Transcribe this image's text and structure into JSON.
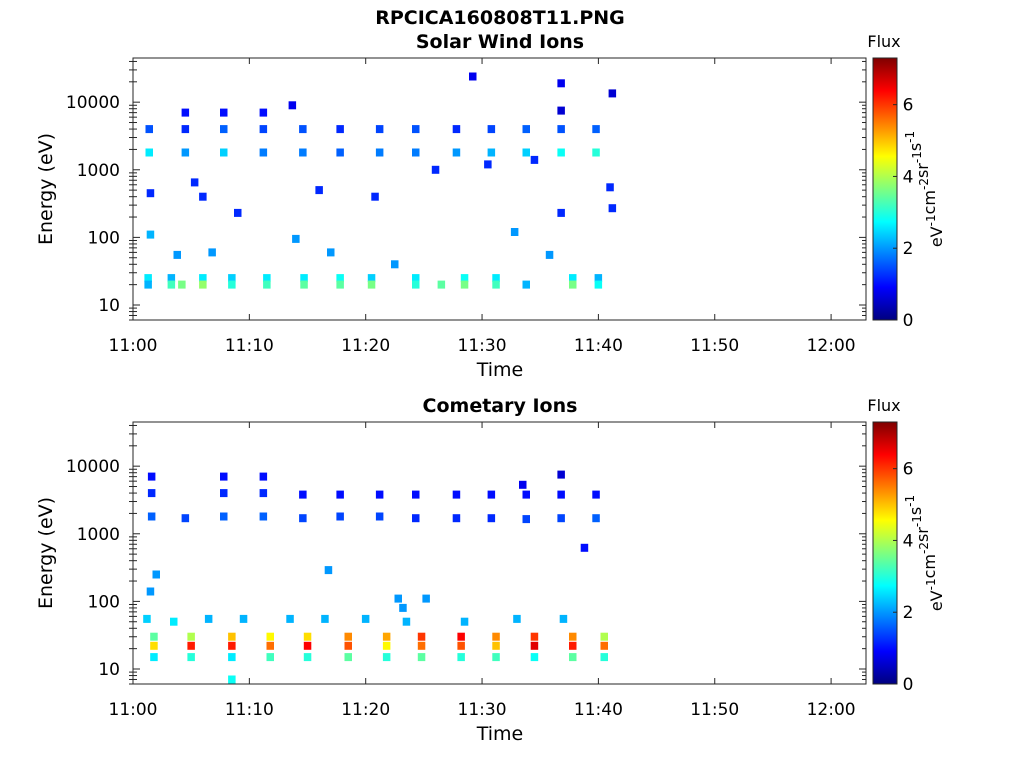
{
  "figure": {
    "title": "RPCICA160808T11.PNG"
  },
  "colormap": {
    "name": "jet",
    "stops": [
      "#00007f",
      "#0000ff",
      "#007fff",
      "#00ffff",
      "#7fff7f",
      "#ffff00",
      "#ff7f00",
      "#ff0000",
      "#7f0000"
    ]
  },
  "colorbar": {
    "title": "Flux",
    "unit_parts": [
      "eV",
      "-1",
      "cm",
      "-2",
      "sr",
      "-1",
      "s",
      "-1"
    ],
    "range": [
      0,
      7.3
    ],
    "ticks": [
      "0",
      "2",
      "4",
      "6"
    ],
    "tick_values": [
      0,
      2,
      4,
      6
    ]
  },
  "chart_data": [
    {
      "type": "heatmap",
      "title": "Solar Wind Ions",
      "xlabel": "Time",
      "ylabel": "Energy (eV)",
      "x_axis": {
        "range_minutes": [
          0,
          63
        ],
        "ticks": [
          "11:00",
          "11:10",
          "11:20",
          "11:30",
          "11:40",
          "11:50",
          "12:00"
        ],
        "tick_minutes": [
          0,
          10,
          20,
          30,
          40,
          50,
          60
        ]
      },
      "y_axis": {
        "scale": "log",
        "range": [
          6,
          45000
        ],
        "ticks": [
          "10",
          "100",
          "1000",
          "10000"
        ],
        "tick_values": [
          10,
          100,
          1000,
          10000
        ]
      },
      "grid": false,
      "blocks": [
        {
          "t": 1.3,
          "e": 25,
          "f": 2.6
        },
        {
          "t": 1.3,
          "e": 20,
          "f": 2.2
        },
        {
          "t": 3.3,
          "e": 25,
          "f": 2.2
        },
        {
          "t": 3.3,
          "e": 20,
          "f": 3.2
        },
        {
          "t": 4.2,
          "e": 20,
          "f": 3.6
        },
        {
          "t": 6.0,
          "e": 25,
          "f": 2.6
        },
        {
          "t": 6.0,
          "e": 20,
          "f": 3.8
        },
        {
          "t": 8.5,
          "e": 25,
          "f": 2.4
        },
        {
          "t": 8.5,
          "e": 20,
          "f": 3.0
        },
        {
          "t": 11.5,
          "e": 25,
          "f": 2.6
        },
        {
          "t": 11.5,
          "e": 20,
          "f": 3.2
        },
        {
          "t": 14.7,
          "e": 25,
          "f": 2.6
        },
        {
          "t": 14.7,
          "e": 20,
          "f": 3.4
        },
        {
          "t": 17.8,
          "e": 25,
          "f": 2.8
        },
        {
          "t": 17.8,
          "e": 20,
          "f": 3.4
        },
        {
          "t": 20.5,
          "e": 25,
          "f": 2.4
        },
        {
          "t": 20.5,
          "e": 20,
          "f": 3.6
        },
        {
          "t": 24.3,
          "e": 25,
          "f": 2.6
        },
        {
          "t": 24.3,
          "e": 20,
          "f": 3.0
        },
        {
          "t": 26.5,
          "e": 20,
          "f": 3.4
        },
        {
          "t": 28.5,
          "e": 25,
          "f": 2.8
        },
        {
          "t": 28.5,
          "e": 20,
          "f": 3.6
        },
        {
          "t": 31.2,
          "e": 25,
          "f": 2.6
        },
        {
          "t": 31.2,
          "e": 20,
          "f": 3.2
        },
        {
          "t": 33.8,
          "e": 20,
          "f": 2.2
        },
        {
          "t": 37.8,
          "e": 25,
          "f": 2.6
        },
        {
          "t": 37.8,
          "e": 20,
          "f": 3.6
        },
        {
          "t": 40.0,
          "e": 25,
          "f": 2.2
        },
        {
          "t": 40.0,
          "e": 20,
          "f": 2.8
        },
        {
          "t": 1.4,
          "e": 4000,
          "f": 1.5
        },
        {
          "t": 1.4,
          "e": 1800,
          "f": 2.6
        },
        {
          "t": 4.5,
          "e": 4000,
          "f": 1.2
        },
        {
          "t": 4.5,
          "e": 1800,
          "f": 2.0
        },
        {
          "t": 7.8,
          "e": 4000,
          "f": 1.6
        },
        {
          "t": 7.8,
          "e": 1800,
          "f": 2.4
        },
        {
          "t": 11.2,
          "e": 4000,
          "f": 1.4
        },
        {
          "t": 11.2,
          "e": 1800,
          "f": 1.8
        },
        {
          "t": 14.6,
          "e": 4000,
          "f": 1.5
        },
        {
          "t": 14.6,
          "e": 1800,
          "f": 1.8
        },
        {
          "t": 17.8,
          "e": 4000,
          "f": 1.2
        },
        {
          "t": 17.8,
          "e": 1800,
          "f": 1.6
        },
        {
          "t": 21.2,
          "e": 4000,
          "f": 1.4
        },
        {
          "t": 21.2,
          "e": 1800,
          "f": 1.8
        },
        {
          "t": 24.3,
          "e": 4000,
          "f": 1.5
        },
        {
          "t": 24.3,
          "e": 1800,
          "f": 1.8
        },
        {
          "t": 27.8,
          "e": 4000,
          "f": 1.2
        },
        {
          "t": 27.8,
          "e": 1800,
          "f": 2.0
        },
        {
          "t": 30.8,
          "e": 4000,
          "f": 1.4
        },
        {
          "t": 30.8,
          "e": 1800,
          "f": 2.2
        },
        {
          "t": 33.8,
          "e": 4000,
          "f": 1.6
        },
        {
          "t": 33.8,
          "e": 1800,
          "f": 2.4
        },
        {
          "t": 36.8,
          "e": 4000,
          "f": 1.5
        },
        {
          "t": 36.8,
          "e": 1800,
          "f": 2.8
        },
        {
          "t": 39.8,
          "e": 4000,
          "f": 1.6
        },
        {
          "t": 39.8,
          "e": 1800,
          "f": 3.0
        },
        {
          "t": 4.5,
          "e": 7000,
          "f": 1.0
        },
        {
          "t": 7.8,
          "e": 7000,
          "f": 1.0
        },
        {
          "t": 11.2,
          "e": 7000,
          "f": 1.0
        },
        {
          "t": 13.7,
          "e": 9000,
          "f": 0.8
        },
        {
          "t": 29.2,
          "e": 24000,
          "f": 0.8
        },
        {
          "t": 36.8,
          "e": 19000,
          "f": 0.8
        },
        {
          "t": 36.8,
          "e": 7500,
          "f": 0.6
        },
        {
          "t": 41.2,
          "e": 13500,
          "f": 0.6
        },
        {
          "t": 1.5,
          "e": 450,
          "f": 1.2
        },
        {
          "t": 5.3,
          "e": 650,
          "f": 1.2
        },
        {
          "t": 6.0,
          "e": 400,
          "f": 1.2
        },
        {
          "t": 9.0,
          "e": 230,
          "f": 1.2
        },
        {
          "t": 16.0,
          "e": 500,
          "f": 1.2
        },
        {
          "t": 20.8,
          "e": 400,
          "f": 1.2
        },
        {
          "t": 26.0,
          "e": 1000,
          "f": 1.2
        },
        {
          "t": 30.5,
          "e": 1200,
          "f": 1.2
        },
        {
          "t": 34.5,
          "e": 1400,
          "f": 1.2
        },
        {
          "t": 36.8,
          "e": 230,
          "f": 1.2
        },
        {
          "t": 41.0,
          "e": 550,
          "f": 1.2
        },
        {
          "t": 41.2,
          "e": 270,
          "f": 1.2
        },
        {
          "t": 1.5,
          "e": 110,
          "f": 2.2
        },
        {
          "t": 3.8,
          "e": 55,
          "f": 2.0
        },
        {
          "t": 6.8,
          "e": 60,
          "f": 2.0
        },
        {
          "t": 14.0,
          "e": 95,
          "f": 2.0
        },
        {
          "t": 17.0,
          "e": 60,
          "f": 2.0
        },
        {
          "t": 22.5,
          "e": 40,
          "f": 2.0
        },
        {
          "t": 32.8,
          "e": 120,
          "f": 2.0
        },
        {
          "t": 35.8,
          "e": 55,
          "f": 2.0
        }
      ]
    },
    {
      "type": "heatmap",
      "title": "Cometary Ions",
      "xlabel": "Time",
      "ylabel": "Energy (eV)",
      "x_axis": {
        "range_minutes": [
          0,
          63
        ],
        "ticks": [
          "11:00",
          "11:10",
          "11:20",
          "11:30",
          "11:40",
          "11:50",
          "12:00"
        ],
        "tick_minutes": [
          0,
          10,
          20,
          30,
          40,
          50,
          60
        ]
      },
      "y_axis": {
        "scale": "log",
        "range": [
          6,
          45000
        ],
        "ticks": [
          "10",
          "100",
          "1000",
          "10000"
        ],
        "tick_values": [
          10,
          100,
          1000,
          10000
        ]
      },
      "grid": false,
      "blocks": [
        {
          "t": 1.8,
          "e": 30,
          "f": 3.4
        },
        {
          "t": 1.8,
          "e": 22,
          "f": 4.8
        },
        {
          "t": 1.8,
          "e": 15,
          "f": 2.6
        },
        {
          "t": 5.0,
          "e": 30,
          "f": 4.0
        },
        {
          "t": 5.0,
          "e": 22,
          "f": 6.2
        },
        {
          "t": 5.0,
          "e": 15,
          "f": 3.0
        },
        {
          "t": 8.5,
          "e": 30,
          "f": 5.0
        },
        {
          "t": 8.5,
          "e": 22,
          "f": 6.2
        },
        {
          "t": 8.5,
          "e": 15,
          "f": 2.6
        },
        {
          "t": 11.8,
          "e": 30,
          "f": 4.6
        },
        {
          "t": 11.8,
          "e": 22,
          "f": 5.6
        },
        {
          "t": 11.8,
          "e": 15,
          "f": 3.2
        },
        {
          "t": 15.0,
          "e": 30,
          "f": 4.8
        },
        {
          "t": 15.0,
          "e": 22,
          "f": 6.4
        },
        {
          "t": 15.0,
          "e": 15,
          "f": 3.0
        },
        {
          "t": 18.5,
          "e": 30,
          "f": 5.4
        },
        {
          "t": 18.5,
          "e": 22,
          "f": 5.8
        },
        {
          "t": 18.5,
          "e": 15,
          "f": 3.4
        },
        {
          "t": 21.8,
          "e": 30,
          "f": 5.2
        },
        {
          "t": 21.8,
          "e": 22,
          "f": 4.6
        },
        {
          "t": 21.8,
          "e": 15,
          "f": 3.0
        },
        {
          "t": 24.8,
          "e": 30,
          "f": 6.0
        },
        {
          "t": 24.8,
          "e": 22,
          "f": 5.6
        },
        {
          "t": 24.8,
          "e": 15,
          "f": 3.4
        },
        {
          "t": 28.2,
          "e": 30,
          "f": 6.4
        },
        {
          "t": 28.2,
          "e": 22,
          "f": 5.8
        },
        {
          "t": 28.2,
          "e": 15,
          "f": 3.0
        },
        {
          "t": 31.2,
          "e": 30,
          "f": 5.4
        },
        {
          "t": 31.2,
          "e": 22,
          "f": 5.0
        },
        {
          "t": 31.2,
          "e": 15,
          "f": 3.2
        },
        {
          "t": 34.5,
          "e": 30,
          "f": 6.0
        },
        {
          "t": 34.5,
          "e": 22,
          "f": 6.6
        },
        {
          "t": 34.5,
          "e": 15,
          "f": 2.8
        },
        {
          "t": 37.8,
          "e": 30,
          "f": 5.4
        },
        {
          "t": 37.8,
          "e": 22,
          "f": 6.2
        },
        {
          "t": 37.8,
          "e": 15,
          "f": 3.4
        },
        {
          "t": 40.5,
          "e": 30,
          "f": 4.0
        },
        {
          "t": 40.5,
          "e": 22,
          "f": 5.6
        },
        {
          "t": 40.5,
          "e": 15,
          "f": 3.0
        },
        {
          "t": 1.2,
          "e": 55,
          "f": 2.4
        },
        {
          "t": 3.5,
          "e": 50,
          "f": 2.6
        },
        {
          "t": 6.5,
          "e": 55,
          "f": 2.2
        },
        {
          "t": 9.5,
          "e": 55,
          "f": 2.2
        },
        {
          "t": 13.5,
          "e": 55,
          "f": 2.2
        },
        {
          "t": 16.5,
          "e": 55,
          "f": 2.2
        },
        {
          "t": 20.0,
          "e": 55,
          "f": 2.2
        },
        {
          "t": 23.5,
          "e": 50,
          "f": 2.2
        },
        {
          "t": 28.5,
          "e": 50,
          "f": 2.2
        },
        {
          "t": 33.0,
          "e": 55,
          "f": 2.2
        },
        {
          "t": 37.0,
          "e": 55,
          "f": 2.2
        },
        {
          "t": 1.5,
          "e": 140,
          "f": 2.0
        },
        {
          "t": 2.0,
          "e": 250,
          "f": 2.0
        },
        {
          "t": 16.8,
          "e": 290,
          "f": 2.0
        },
        {
          "t": 22.8,
          "e": 110,
          "f": 2.0
        },
        {
          "t": 23.2,
          "e": 80,
          "f": 2.0
        },
        {
          "t": 25.2,
          "e": 110,
          "f": 2.0
        },
        {
          "t": 8.5,
          "e": 7,
          "f": 2.8
        },
        {
          "t": 1.6,
          "e": 4000,
          "f": 1.2
        },
        {
          "t": 1.6,
          "e": 1800,
          "f": 1.6
        },
        {
          "t": 4.5,
          "e": 1700,
          "f": 1.4
        },
        {
          "t": 7.8,
          "e": 4000,
          "f": 1.2
        },
        {
          "t": 7.8,
          "e": 1800,
          "f": 1.6
        },
        {
          "t": 11.2,
          "e": 4000,
          "f": 1.2
        },
        {
          "t": 11.2,
          "e": 1800,
          "f": 1.6
        },
        {
          "t": 14.6,
          "e": 1700,
          "f": 1.4
        },
        {
          "t": 14.6,
          "e": 3800,
          "f": 1.0
        },
        {
          "t": 17.8,
          "e": 3800,
          "f": 1.0
        },
        {
          "t": 17.8,
          "e": 1800,
          "f": 1.4
        },
        {
          "t": 21.2,
          "e": 3800,
          "f": 1.0
        },
        {
          "t": 21.2,
          "e": 1800,
          "f": 1.4
        },
        {
          "t": 24.3,
          "e": 3800,
          "f": 1.0
        },
        {
          "t": 24.3,
          "e": 1700,
          "f": 1.2
        },
        {
          "t": 27.8,
          "e": 3800,
          "f": 1.0
        },
        {
          "t": 27.8,
          "e": 1700,
          "f": 1.2
        },
        {
          "t": 30.8,
          "e": 3800,
          "f": 1.0
        },
        {
          "t": 30.8,
          "e": 1700,
          "f": 1.2
        },
        {
          "t": 33.8,
          "e": 3800,
          "f": 1.0
        },
        {
          "t": 33.8,
          "e": 1650,
          "f": 1.4
        },
        {
          "t": 36.8,
          "e": 3800,
          "f": 1.0
        },
        {
          "t": 36.8,
          "e": 1700,
          "f": 1.4
        },
        {
          "t": 39.8,
          "e": 3800,
          "f": 1.0
        },
        {
          "t": 39.8,
          "e": 1700,
          "f": 1.6
        },
        {
          "t": 1.6,
          "e": 7000,
          "f": 1.0
        },
        {
          "t": 7.8,
          "e": 7000,
          "f": 1.0
        },
        {
          "t": 11.2,
          "e": 7000,
          "f": 1.0
        },
        {
          "t": 33.5,
          "e": 5300,
          "f": 0.8
        },
        {
          "t": 36.8,
          "e": 7500,
          "f": 0.6
        },
        {
          "t": 38.8,
          "e": 620,
          "f": 1.0
        }
      ]
    }
  ]
}
